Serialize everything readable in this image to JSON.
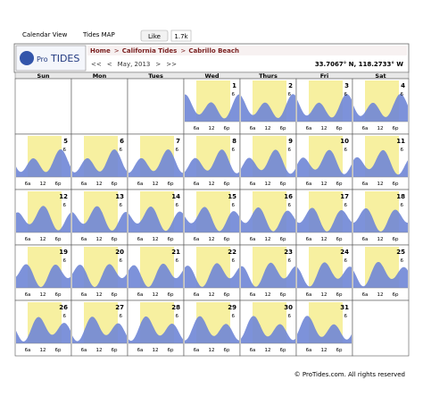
{
  "toolbar": {
    "links": [
      "Calendar View",
      "Tides MAP"
    ],
    "like_button": "Like",
    "like_count": "1.7k"
  },
  "header": {
    "logo_pre": "Pro",
    "logo_main": "TIDES",
    "breadcrumb": [
      "Home",
      "California Tides",
      "Cabrillo Beach"
    ],
    "separator": ">",
    "nav": [
      "<<",
      "<",
      "May, 2013",
      ">",
      ">>"
    ],
    "coordinates": "33.7067° N, 118.2733° W"
  },
  "calendar": {
    "weekdays": [
      "Sun",
      "Mon",
      "Tues",
      "Wed",
      "Thurs",
      "Fri",
      "Sat"
    ],
    "hour_mark": "6",
    "axis_labels": [
      "6a",
      "12",
      "6p"
    ],
    "weeks": [
      [
        null,
        null,
        null,
        1,
        2,
        3,
        4
      ],
      [
        5,
        6,
        7,
        8,
        9,
        10,
        11
      ],
      [
        12,
        13,
        14,
        15,
        16,
        17,
        18
      ],
      [
        19,
        20,
        21,
        22,
        23,
        24,
        25
      ],
      [
        26,
        27,
        28,
        29,
        30,
        31,
        null
      ]
    ]
  },
  "footer": "© ProTides.com. All rights reserved"
}
